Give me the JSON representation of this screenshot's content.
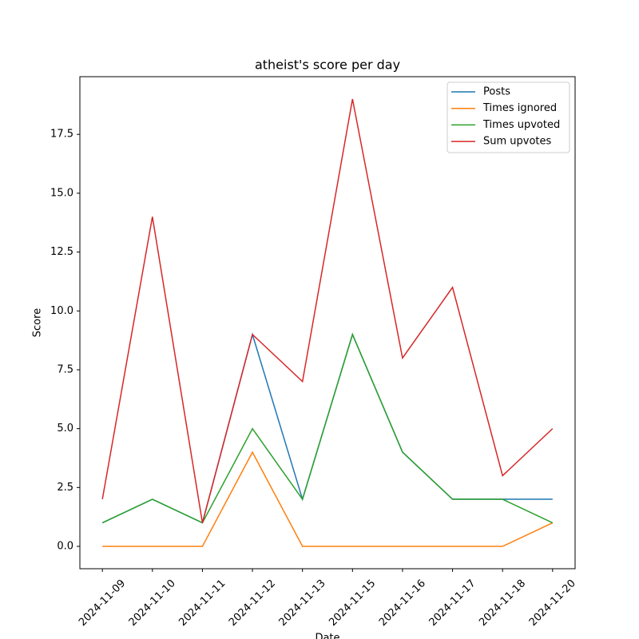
{
  "chart_data": {
    "type": "line",
    "title": "atheist's score per day",
    "x_label": "Date",
    "y_label": "Score",
    "categories": [
      "2024-11-09",
      "2024-11-10",
      "2024-11-11",
      "2024-11-12",
      "2024-11-13",
      "2024-11-15",
      "2024-11-16",
      "2024-11-17",
      "2024-11-18",
      "2024-11-20"
    ],
    "series": [
      {
        "name": "Posts",
        "color": "#1f77b4",
        "values": [
          1,
          2,
          1,
          9,
          2,
          9,
          4,
          2,
          2,
          2
        ]
      },
      {
        "name": "Times ignored",
        "color": "#ff7f0e",
        "values": [
          0,
          0,
          0,
          4,
          0,
          0,
          0,
          0,
          0,
          1
        ]
      },
      {
        "name": "Times upvoted",
        "color": "#2ca02c",
        "values": [
          1,
          2,
          1,
          5,
          2,
          9,
          4,
          2,
          2,
          1
        ]
      },
      {
        "name": "Sum upvotes",
        "color": "#d62728",
        "values": [
          2,
          14,
          1,
          9,
          7,
          19,
          8,
          11,
          3,
          5
        ]
      }
    ],
    "ylim": [
      -0.95,
      19.95
    ],
    "yticks": [
      {
        "value": 0,
        "label": "0.0"
      },
      {
        "value": 2.5,
        "label": "2.5"
      },
      {
        "value": 5,
        "label": "5.0"
      },
      {
        "value": 7.5,
        "label": "7.5"
      },
      {
        "value": 10,
        "label": "10.0"
      },
      {
        "value": 12.5,
        "label": "12.5"
      },
      {
        "value": 15,
        "label": "15.0"
      },
      {
        "value": 17.5,
        "label": "17.5"
      }
    ],
    "legend": "upper right",
    "grid": false
  }
}
